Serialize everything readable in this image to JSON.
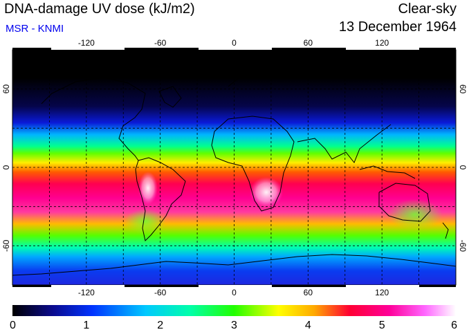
{
  "header": {
    "title": "DNA-damage UV dose (kJ/m2)",
    "credit": "MSR - KNMI",
    "product": "Clear-sky",
    "date": "13 December 1964"
  },
  "map": {
    "lon_ticks": [
      "-120",
      "-60",
      "0",
      "60",
      "120"
    ],
    "lon_values": [
      -120,
      -60,
      0,
      60,
      120
    ],
    "lat_ticks": [
      "60",
      "0",
      "-60"
    ],
    "lat_values": [
      60,
      0,
      -60
    ],
    "gridlines": "dashed"
  },
  "colorbar": {
    "labels": [
      "0",
      "1",
      "2",
      "3",
      "4",
      "5",
      "6"
    ],
    "min": 0,
    "max": 6,
    "colors": [
      "#000000",
      "#0a0a8c",
      "#0033ff",
      "#00c8ff",
      "#00ffaa",
      "#22ff00",
      "#ffff00",
      "#ffaa00",
      "#ff0033",
      "#ff0099",
      "#ff66ff",
      "#ffffff"
    ]
  }
}
